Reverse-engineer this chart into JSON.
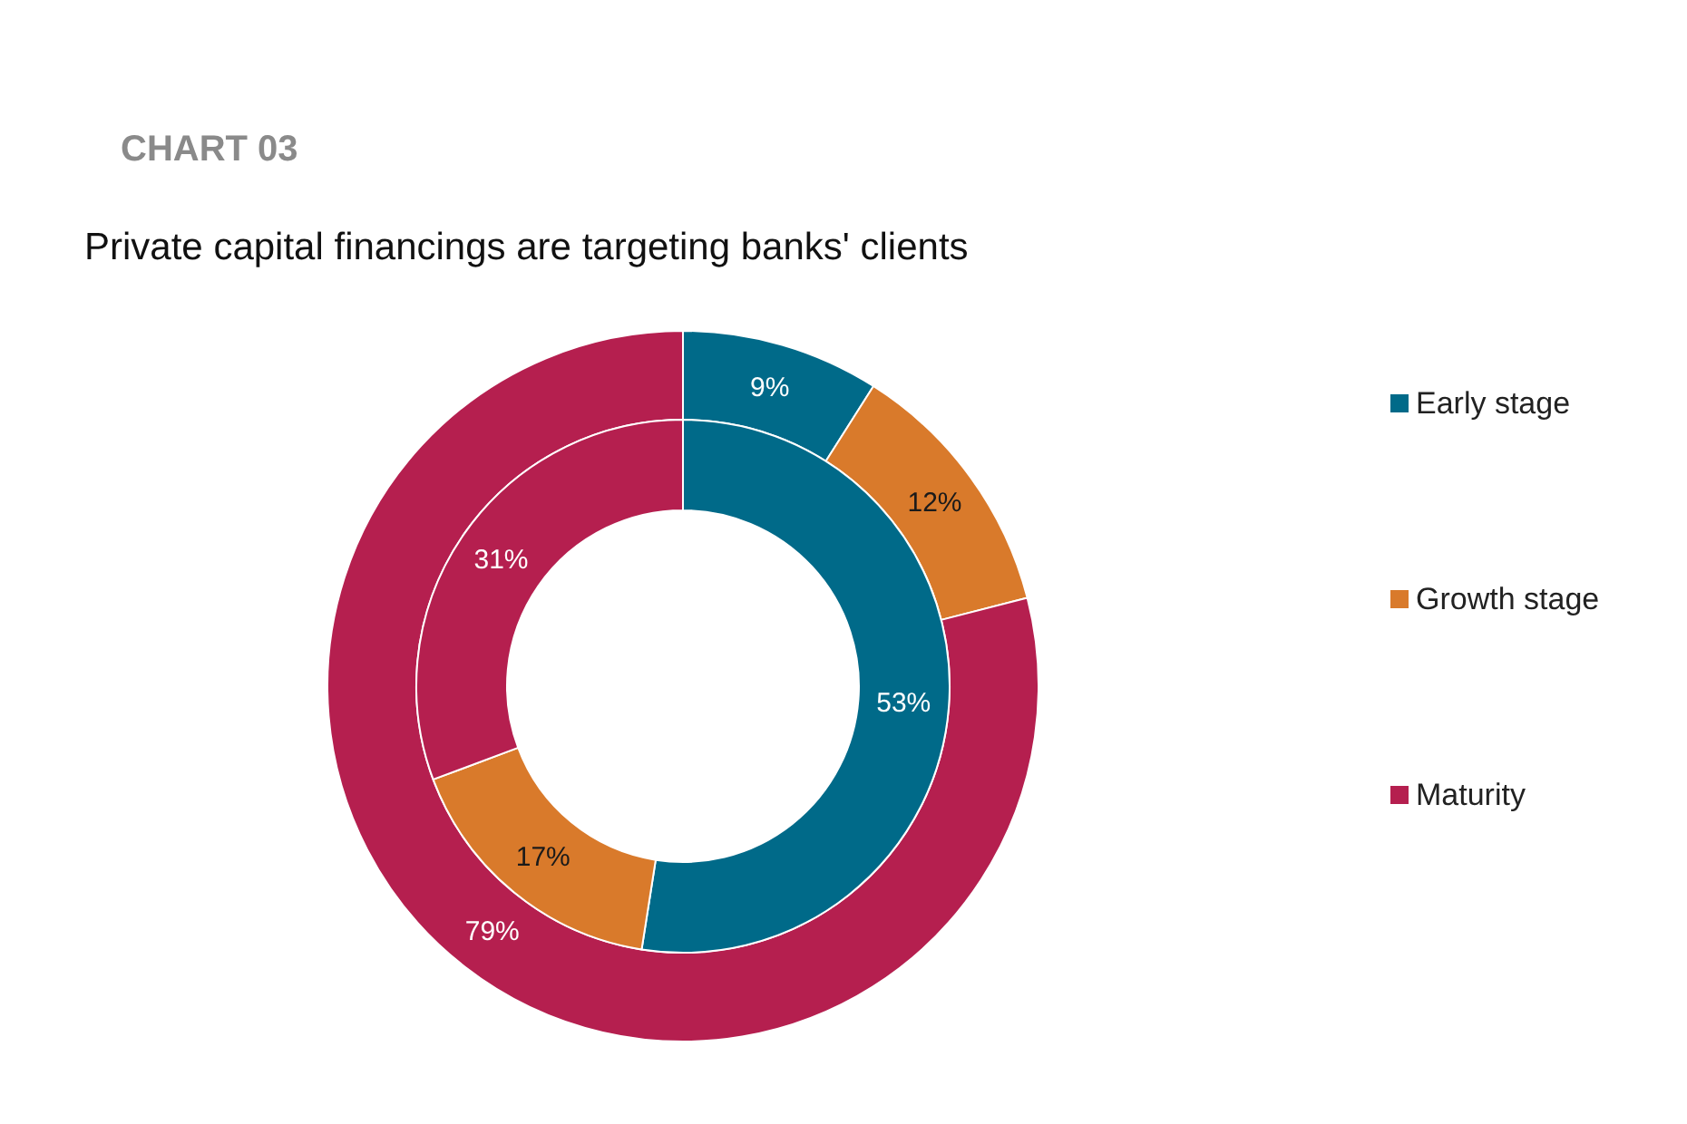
{
  "chart_data": {
    "type": "donut",
    "title": "Private capital financings are targeting banks' clients",
    "annotations": [
      "CHART 03"
    ],
    "categories": [
      "Early stage",
      "Growth stage",
      "Maturity"
    ],
    "series": [
      {
        "values": [
          9,
          12,
          79
        ],
        "value_labels": [
          "9%",
          "12%",
          "79%"
        ],
        "colors": [
          "#006a89",
          "#d97a2b",
          "#b51f4f"
        ]
      },
      {
        "values": [
          53,
          17,
          31
        ],
        "value_labels": [
          "53%",
          "17%",
          "31%"
        ],
        "colors": [
          "#006a89",
          "#d97a2b",
          "#b51f4f"
        ]
      }
    ],
    "legend": "right"
  }
}
